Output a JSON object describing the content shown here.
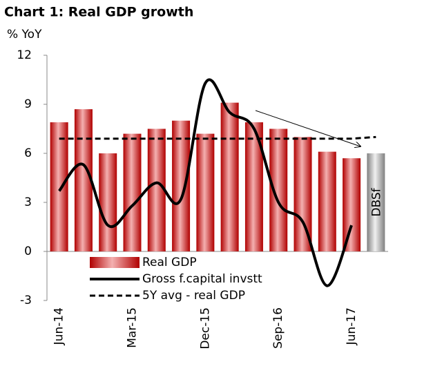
{
  "chart_data": {
    "type": "bar",
    "title": "Chart 1: Real GDP growth",
    "y_label": "% YoY",
    "categories": [
      "Jun-14",
      null,
      null,
      "Mar-15",
      null,
      null,
      "Dec-15",
      null,
      null,
      "Sep-16",
      null,
      null,
      "Jun-17",
      null
    ],
    "ylim": [
      -3,
      12
    ],
    "yticks": [
      -3,
      0,
      3,
      6,
      9,
      12
    ],
    "legend": "bottom",
    "annotation": "DBSf",
    "series": [
      {
        "name": "Real GDP",
        "type": "bar",
        "color": "#c00000",
        "values": [
          7.9,
          8.7,
          6.0,
          7.2,
          7.5,
          8.0,
          7.2,
          9.1,
          7.9,
          7.5,
          7.0,
          6.1,
          5.7,
          6.0
        ],
        "point_colors": [
          "#c00000",
          "#c00000",
          "#c00000",
          "#c00000",
          "#c00000",
          "#c00000",
          "#c00000",
          "#c00000",
          "#c00000",
          "#c00000",
          "#c00000",
          "#c00000",
          "#c00000",
          "#909090"
        ]
      },
      {
        "name": "Gross f.capital invstt",
        "type": "line",
        "color": "#000000",
        "values": [
          3.7,
          5.3,
          1.6,
          2.8,
          4.2,
          3.2,
          10.3,
          8.5,
          7.5,
          3.0,
          1.8,
          -2.1,
          1.6,
          null
        ]
      },
      {
        "name": "5Y avg - real GDP",
        "type": "dashed",
        "color": "#000000",
        "values": [
          6.9,
          6.9,
          6.9,
          6.9,
          6.9,
          6.9,
          6.9,
          6.9,
          6.9,
          6.9,
          6.9,
          6.9,
          6.9,
          7.0
        ]
      }
    ]
  }
}
